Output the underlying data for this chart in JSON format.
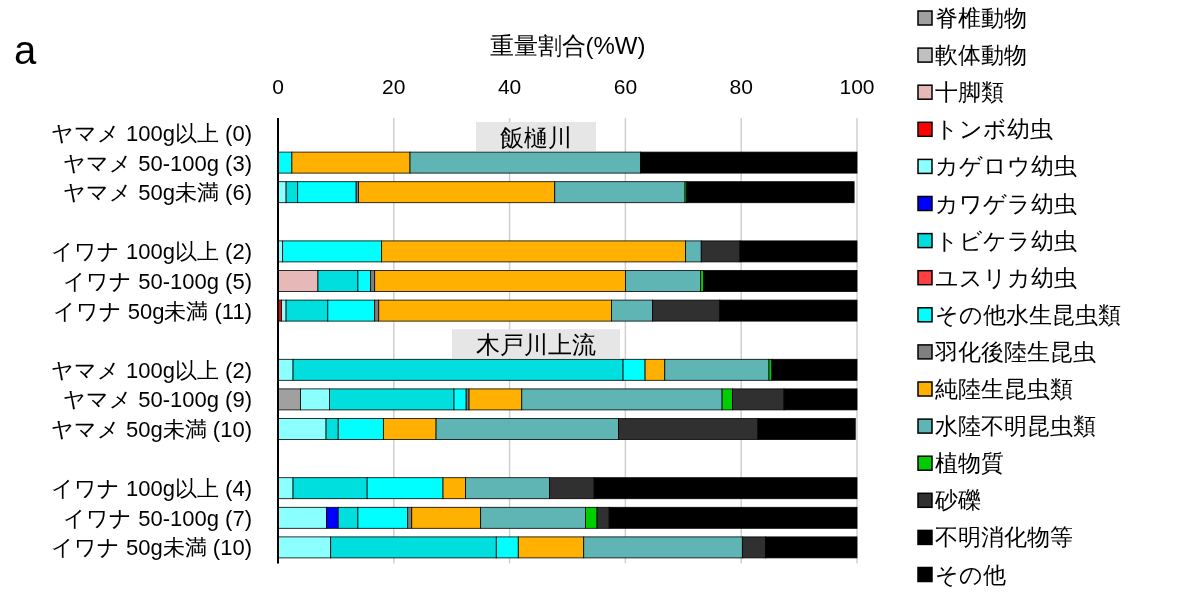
{
  "chart_data": {
    "type": "bar",
    "orientation": "horizontal",
    "stacked": true,
    "xlabel": "重量割合(%W)",
    "categories": [
      "ヤマメ 100g以上 (0)",
      "ヤマメ  50-100g (3)",
      "ヤマメ 50g未満 (6)",
      null,
      "イワナ 100g以上 (2)",
      "イワナ 50-100g (5)",
      "イワナ 50g未満 (11)",
      null,
      "ヤマメ 100g以上 (2)",
      "ヤマメ  50-100g (9)",
      "ヤマメ 50g未満 (10)",
      null,
      "イワナ 100g以上 (4)",
      "イワナ 50-100g (7)",
      "イワナ 50g未満 (10)"
    ],
    "xlim": [
      0,
      100
    ],
    "xticks": [
      0,
      20,
      40,
      60,
      80,
      100
    ],
    "grid": "x",
    "legend": "right",
    "annotations": [
      "a",
      "飯樋川",
      "木戸川上流"
    ],
    "series": [
      {
        "name": "脊椎動物",
        "color": "#a0a0a0",
        "values": [
          null,
          null,
          null,
          null,
          null,
          null,
          null,
          null,
          null,
          3.9,
          null,
          null,
          null,
          null,
          null
        ]
      },
      {
        "name": "軟体動物",
        "color": "#c0c0c0",
        "values": [
          null,
          null,
          null,
          null,
          null,
          null,
          null,
          null,
          null,
          null,
          null,
          null,
          null,
          null,
          null
        ]
      },
      {
        "name": "十脚類",
        "color": "#e6b9b8",
        "values": [
          null,
          null,
          null,
          null,
          null,
          6.9,
          null,
          null,
          null,
          null,
          null,
          null,
          null,
          null,
          null
        ]
      },
      {
        "name": "トンボ幼虫",
        "color": "#ff0000",
        "values": [
          null,
          null,
          null,
          null,
          null,
          null,
          0.6,
          null,
          null,
          null,
          null,
          null,
          null,
          null,
          null
        ]
      },
      {
        "name": "カゲロウ幼虫",
        "color": "#8cffff",
        "values": [
          null,
          null,
          1.4,
          null,
          0.8,
          null,
          0.8,
          null,
          2.6,
          5.0,
          8.3,
          null,
          2.6,
          8.4,
          9.1
        ]
      },
      {
        "name": "カワゲラ幼虫",
        "color": "#0000ff",
        "values": [
          null,
          null,
          null,
          null,
          null,
          null,
          null,
          null,
          null,
          null,
          null,
          null,
          null,
          2.0,
          null
        ]
      },
      {
        "name": "トビケラ幼虫",
        "color": "#00dede",
        "values": [
          null,
          null,
          2.0,
          null,
          null,
          6.9,
          7.2,
          null,
          57.0,
          21.5,
          2.1,
          null,
          12.8,
          3.4,
          28.6
        ]
      },
      {
        "name": "ユスリカ幼虫",
        "color": "#ff4040",
        "values": [
          null,
          null,
          null,
          null,
          null,
          null,
          null,
          null,
          null,
          null,
          null,
          null,
          null,
          null,
          null
        ]
      },
      {
        "name": "その他水生昆虫類",
        "color": "#00ffff",
        "values": [
          null,
          2.4,
          10.1,
          null,
          17.1,
          2.2,
          8.1,
          null,
          3.8,
          2.1,
          7.8,
          null,
          13.1,
          8.6,
          3.8
        ]
      },
      {
        "name": "羽化後陸生昆虫",
        "color": "#808080",
        "values": [
          null,
          null,
          0.4,
          null,
          null,
          0.7,
          0.7,
          null,
          null,
          0.5,
          null,
          null,
          null,
          0.7,
          null
        ]
      },
      {
        "name": "純陸生昆虫類",
        "color": "#ffb000",
        "values": [
          null,
          20.4,
          33.9,
          null,
          52.5,
          43.3,
          40.2,
          null,
          3.4,
          9.1,
          9.1,
          null,
          3.9,
          11.9,
          11.3
        ]
      },
      {
        "name": "水陸不明昆虫類",
        "color": "#5fb4b4",
        "values": [
          null,
          39.8,
          22.5,
          null,
          2.7,
          13.0,
          7.1,
          null,
          18.0,
          34.6,
          31.5,
          null,
          14.5,
          18.1,
          27.4
        ]
      },
      {
        "name": "植物質",
        "color": "#00cc00",
        "values": [
          null,
          null,
          0.3,
          null,
          null,
          0.5,
          null,
          null,
          0.5,
          1.8,
          null,
          null,
          null,
          2.0,
          null
        ]
      },
      {
        "name": "砂礫",
        "color": "#303030",
        "values": [
          null,
          null,
          null,
          null,
          6.7,
          null,
          11.6,
          null,
          null,
          8.9,
          24.1,
          null,
          7.7,
          2.1,
          4.0
        ]
      },
      {
        "name": "不明消化物等",
        "color": "#000000",
        "values": [
          null,
          37.4,
          28.9,
          null,
          20.2,
          26.5,
          23.7,
          null,
          14.7,
          12.6,
          16.8,
          null,
          45.4,
          42.8,
          15.8
        ]
      },
      {
        "name": "その他",
        "color": "#000000",
        "values": [
          null,
          null,
          null,
          null,
          null,
          null,
          null,
          null,
          null,
          null,
          null,
          null,
          null,
          null,
          null
        ]
      }
    ]
  }
}
